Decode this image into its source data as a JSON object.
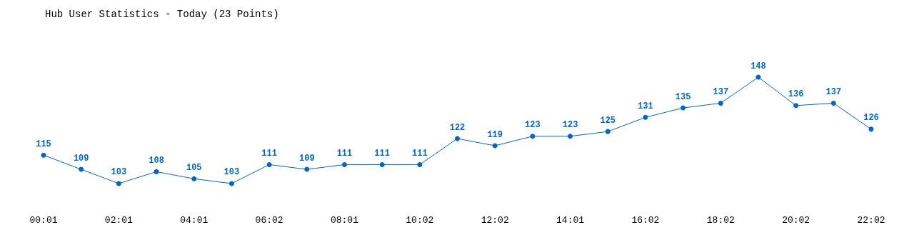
{
  "chart_data": {
    "type": "line",
    "title": "Hub User Statistics - Today (23 Points)",
    "categories": [
      "00:01",
      null,
      "02:01",
      null,
      "04:01",
      null,
      "06:02",
      null,
      "08:01",
      null,
      "10:02",
      null,
      "12:02",
      null,
      "14:01",
      null,
      "16:02",
      null,
      "18:02",
      null,
      "20:02",
      null,
      "22:02"
    ],
    "values": [
      115,
      109,
      103,
      108,
      105,
      103,
      111,
      109,
      111,
      111,
      111,
      122,
      119,
      123,
      123,
      125,
      131,
      135,
      137,
      148,
      136,
      137,
      126
    ],
    "color": "#0066cc",
    "data_labels": true,
    "marker": "circle",
    "grid": false
  }
}
